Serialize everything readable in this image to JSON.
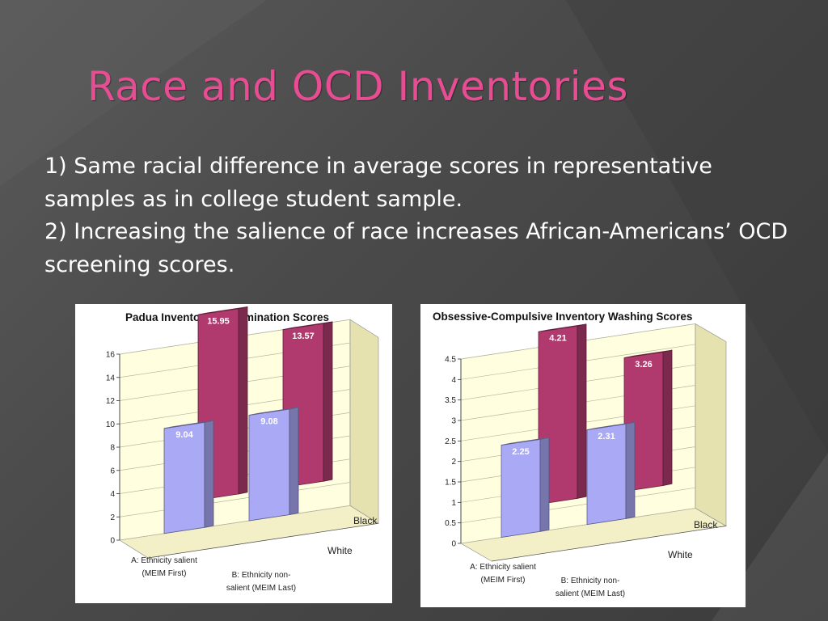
{
  "slide": {
    "title": "Race and OCD Inventories",
    "bullets": [
      "1) Same racial difference in average scores in representative samples as in college student sample.",
      "2) Increasing the salience of race increases African-Americans’ OCD screening scores."
    ]
  },
  "colors": {
    "title": "#e64d92",
    "text": "#ffffff",
    "background": "#4a4a4a",
    "series_white": "#a9a9f5",
    "series_black": "#b03a6e",
    "chart_wall": "#ffffe0"
  },
  "chart_data": [
    {
      "type": "bar",
      "style": "3d-clustered",
      "title": "Padua Inventory Contamination Scores",
      "categories": [
        "A: Ethnicity salient (MEIM First)",
        "B: Ethnicity non-salient (MEIM Last)"
      ],
      "category_lines": [
        [
          "A: Ethnicity salient",
          "(MEIM First)"
        ],
        [
          "B: Ethnicity non-",
          "salient (MEIM Last)"
        ]
      ],
      "series": [
        {
          "name": "White",
          "values": [
            9.04,
            9.08
          ]
        },
        {
          "name": "Black",
          "values": [
            15.95,
            13.57
          ]
        }
      ],
      "data_labels": [
        [
          "9.04",
          "9.08"
        ],
        [
          "15.95",
          "13.57"
        ]
      ],
      "yticks": [
        "0",
        "2",
        "4",
        "6",
        "8",
        "10",
        "12",
        "14",
        "16"
      ],
      "ylim": [
        0,
        16
      ],
      "grid": true
    },
    {
      "type": "bar",
      "style": "3d-clustered",
      "title": "Obsessive-Compulsive Inventory Washing Scores",
      "categories": [
        "A: Ethnicity salient (MEIM First)",
        "B: Ethnicity non-salient (MEIM Last)"
      ],
      "category_lines": [
        [
          "A: Ethnicity salient",
          "(MEIM First)"
        ],
        [
          "B: Ethnicity non-",
          "salient (MEIM Last)"
        ]
      ],
      "series": [
        {
          "name": "White",
          "values": [
            2.25,
            2.31
          ]
        },
        {
          "name": "Black",
          "values": [
            4.21,
            3.26
          ]
        }
      ],
      "data_labels": [
        [
          "2.25",
          "2.31"
        ],
        [
          "4.21",
          "3.26"
        ]
      ],
      "yticks": [
        "0",
        "0.5",
        "1",
        "1.5",
        "2",
        "2.5",
        "3",
        "3.5",
        "4",
        "4.5"
      ],
      "ylim": [
        0,
        4.5
      ],
      "grid": true
    }
  ]
}
